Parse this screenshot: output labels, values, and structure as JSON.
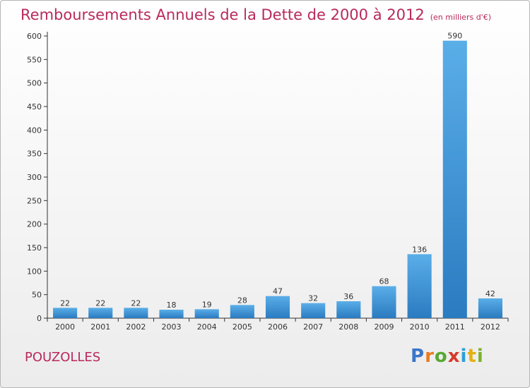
{
  "chart_data": {
    "type": "bar",
    "title": "Remboursements Annuels de la Dette de 2000 à 2012",
    "subtitle": "(en milliers d'€)",
    "categories": [
      "2000",
      "2001",
      "2002",
      "2003",
      "2004",
      "2005",
      "2006",
      "2007",
      "2008",
      "2009",
      "2010",
      "2011",
      "2012"
    ],
    "values": [
      22,
      22,
      22,
      18,
      19,
      28,
      47,
      32,
      36,
      68,
      136,
      590,
      42
    ],
    "ylim": [
      0,
      600
    ],
    "yticks": [
      0,
      50,
      100,
      150,
      200,
      250,
      300,
      350,
      400,
      450,
      500,
      550,
      600
    ],
    "xlabel": "",
    "ylabel": "",
    "grid": false,
    "bar_color_light": "#5aaee8",
    "bar_color_dark": "#2a7bc0"
  },
  "footer": {
    "commune": "POUZOLLES",
    "logo_text": [
      "P",
      "r",
      "o",
      "x",
      "i",
      "t",
      "i"
    ]
  },
  "colors": {
    "title": "#b8295c",
    "axis": "#333333"
  }
}
